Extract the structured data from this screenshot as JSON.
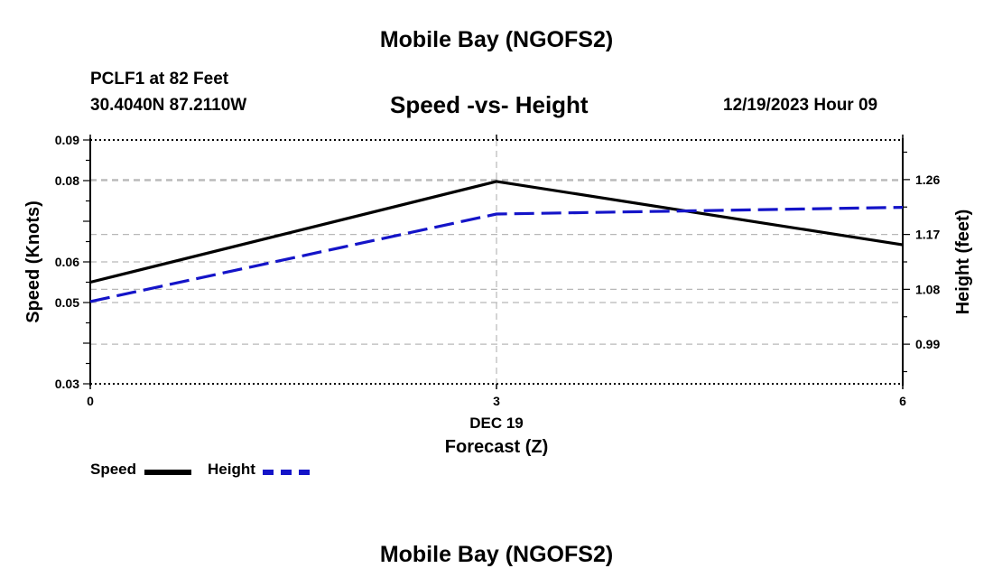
{
  "header": {
    "title": "Mobile Bay (NGOFS2)",
    "station": "PCLF1 at 82 Feet",
    "coords": "30.4040N  87.2110W",
    "subtitle": "Speed -vs- Height",
    "datetime": "12/19/2023 Hour 09"
  },
  "footer": {
    "title": "Mobile Bay (NGOFS2)"
  },
  "chart_data": {
    "type": "line",
    "title": "Speed -vs- Height",
    "xlabel": "Forecast (Z)",
    "xlabel_date": "DEC 19",
    "ylabel": "Speed (Knots)",
    "y2label": "Height (feet)",
    "x": [
      0,
      3,
      6
    ],
    "xticks": [
      0,
      3,
      6
    ],
    "xlim": [
      0,
      6
    ],
    "ylim": [
      0.03,
      0.09
    ],
    "yticks": [
      0.03,
      0.05,
      0.06,
      0.08,
      0.09
    ],
    "ytick_labels": [
      "0.03",
      "0.05",
      "0.06",
      "0.08",
      "0.09"
    ],
    "y2lim": [
      0.925,
      1.325
    ],
    "y2ticks": [
      0.99,
      1.08,
      1.17,
      1.26
    ],
    "y2tick_labels": [
      "0.99",
      "1.08",
      "1.17",
      "1.26"
    ],
    "grid": true,
    "legend_position": "bottom-left",
    "series": [
      {
        "name": "Speed",
        "axis": "left",
        "color": "#000000",
        "style": "solid",
        "values": [
          0.055,
          0.0798,
          0.0642
        ]
      },
      {
        "name": "Height",
        "axis": "right",
        "color": "#1414c8",
        "style": "dashed",
        "values": [
          1.06,
          1.2035,
          1.2145
        ]
      }
    ]
  }
}
